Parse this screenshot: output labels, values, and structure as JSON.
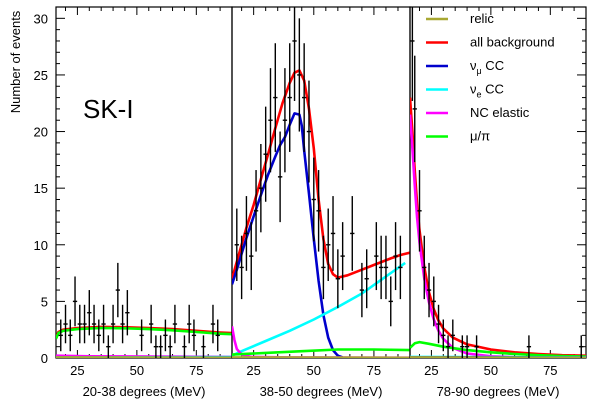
{
  "figure": {
    "ylabel": "Number of events",
    "annotation": "SK-I",
    "ylim": [
      0,
      31
    ],
    "y_ticks": [
      0,
      5,
      10,
      15,
      20,
      25,
      30
    ],
    "x_ticks": [
      25,
      50,
      75
    ],
    "xlim": [
      16,
      90
    ]
  },
  "legend": {
    "placement": "top-right (panel 3)",
    "entries": [
      {
        "label": "relic",
        "color": "#a8a832"
      },
      {
        "label": "all background",
        "color": "#ff0000"
      },
      {
        "label": "νμ CC",
        "base": "ν",
        "sub": "μ",
        "suffix": " CC",
        "color": "#0000cc"
      },
      {
        "label": "νe CC",
        "base": "ν",
        "sub": "e",
        "suffix": " CC",
        "color": "#00ffff"
      },
      {
        "label": "NC elastic",
        "color": "#ff00ff"
      },
      {
        "label": "μ/π",
        "color": "#00ff00"
      }
    ]
  },
  "chart_data": [
    {
      "type": "line",
      "panel": "20-38 degrees",
      "xlabel": "20-38 degrees (MeV)",
      "xlim": [
        16,
        90
      ],
      "ylim": [
        0,
        31
      ],
      "points": [
        {
          "x": 18,
          "y": 2,
          "err": 1.4
        },
        {
          "x": 20,
          "y": 3,
          "err": 1.7
        },
        {
          "x": 22,
          "y": 2,
          "err": 1.4
        },
        {
          "x": 24,
          "y": 5,
          "err": 2.2
        },
        {
          "x": 26,
          "y": 3,
          "err": 1.7
        },
        {
          "x": 28,
          "y": 3,
          "err": 1.7
        },
        {
          "x": 30,
          "y": 4,
          "err": 2.0
        },
        {
          "x": 32,
          "y": 3,
          "err": 1.7
        },
        {
          "x": 34,
          "y": 2,
          "err": 1.4
        },
        {
          "x": 36,
          "y": 3,
          "err": 1.7
        },
        {
          "x": 38,
          "y": 1,
          "err": 1.0
        },
        {
          "x": 40,
          "y": 3,
          "err": 1.7
        },
        {
          "x": 42,
          "y": 6,
          "err": 2.4
        },
        {
          "x": 44,
          "y": 3,
          "err": 1.7
        },
        {
          "x": 46,
          "y": 4,
          "err": 2.0
        },
        {
          "x": 52,
          "y": 2,
          "err": 1.4
        },
        {
          "x": 56,
          "y": 3,
          "err": 1.7
        },
        {
          "x": 58,
          "y": 1,
          "err": 1.0
        },
        {
          "x": 60,
          "y": 1,
          "err": 1.0
        },
        {
          "x": 62,
          "y": 2,
          "err": 1.4
        },
        {
          "x": 64,
          "y": 1,
          "err": 1.0
        },
        {
          "x": 66,
          "y": 3,
          "err": 1.7
        },
        {
          "x": 70,
          "y": 1,
          "err": 1.0
        },
        {
          "x": 72,
          "y": 3,
          "err": 1.7
        },
        {
          "x": 74,
          "y": 2,
          "err": 1.4
        },
        {
          "x": 78,
          "y": 1,
          "err": 1.0
        },
        {
          "x": 82,
          "y": 3,
          "err": 1.7
        },
        {
          "x": 84,
          "y": 2,
          "err": 1.4
        }
      ],
      "series": [
        {
          "name": "all background",
          "color": "#ff0000",
          "points": [
            [
              16,
              1.8
            ],
            [
              17,
              2.3
            ],
            [
              19,
              2.5
            ],
            [
              25,
              2.65
            ],
            [
              35,
              2.75
            ],
            [
              45,
              2.72
            ],
            [
              55,
              2.65
            ],
            [
              65,
              2.55
            ],
            [
              75,
              2.4
            ],
            [
              85,
              2.25
            ],
            [
              90,
              2.2
            ]
          ]
        },
        {
          "name": "μ/π",
          "color": "#00ff00",
          "points": [
            [
              16,
              1.7
            ],
            [
              17,
              2.2
            ],
            [
              19,
              2.4
            ],
            [
              25,
              2.55
            ],
            [
              35,
              2.65
            ],
            [
              45,
              2.62
            ],
            [
              55,
              2.55
            ],
            [
              65,
              2.45
            ],
            [
              75,
              2.3
            ],
            [
              85,
              2.15
            ],
            [
              90,
              2.1
            ]
          ]
        },
        {
          "name": "NC elastic",
          "color": "#ff00ff",
          "points": [
            [
              16,
              0.2
            ],
            [
              30,
              0.15
            ],
            [
              60,
              0.12
            ],
            [
              90,
              0.1
            ]
          ]
        },
        {
          "name": "νe CC",
          "color": "#00ffff",
          "points": [
            [
              16,
              0.05
            ],
            [
              90,
              0.08
            ]
          ]
        },
        {
          "name": "νμ CC",
          "color": "#0000cc",
          "points": [
            [
              16,
              0.03
            ],
            [
              90,
              0.03
            ]
          ]
        },
        {
          "name": "relic",
          "color": "#a8a832",
          "points": [
            [
              16,
              0.05
            ],
            [
              90,
              0.02
            ]
          ]
        }
      ]
    },
    {
      "type": "line",
      "panel": "38-50 degrees",
      "xlabel": "38-50 degrees (MeV)",
      "xlim": [
        16,
        90
      ],
      "ylim": [
        0,
        31
      ],
      "points": [
        {
          "x": 18,
          "y": 10,
          "err": 3.2
        },
        {
          "x": 20,
          "y": 8,
          "err": 2.8
        },
        {
          "x": 22,
          "y": 11,
          "err": 3.3
        },
        {
          "x": 24,
          "y": 9,
          "err": 3.0
        },
        {
          "x": 26,
          "y": 13,
          "err": 3.6
        },
        {
          "x": 28,
          "y": 15,
          "err": 3.9
        },
        {
          "x": 30,
          "y": 18,
          "err": 4.2
        },
        {
          "x": 32,
          "y": 21,
          "err": 4.6
        },
        {
          "x": 34,
          "y": 23,
          "err": 4.8
        },
        {
          "x": 36,
          "y": 16,
          "err": 4.0
        },
        {
          "x": 38,
          "y": 21,
          "err": 4.6
        },
        {
          "x": 40,
          "y": 23,
          "err": 4.8
        },
        {
          "x": 42,
          "y": 28,
          "err": 5.3
        },
        {
          "x": 44,
          "y": 25,
          "err": 5.0
        },
        {
          "x": 46,
          "y": 23,
          "err": 4.8
        },
        {
          "x": 48,
          "y": 20,
          "err": 4.5
        },
        {
          "x": 50,
          "y": 14,
          "err": 3.7
        },
        {
          "x": 52,
          "y": 13,
          "err": 3.6
        },
        {
          "x": 54,
          "y": 8,
          "err": 2.8
        },
        {
          "x": 56,
          "y": 10,
          "err": 3.2
        },
        {
          "x": 58,
          "y": 11,
          "err": 3.3
        },
        {
          "x": 60,
          "y": 7,
          "err": 2.6
        },
        {
          "x": 62,
          "y": 9,
          "err": 3.0
        },
        {
          "x": 66,
          "y": 11,
          "err": 3.3
        },
        {
          "x": 70,
          "y": 6,
          "err": 2.4
        },
        {
          "x": 72,
          "y": 7,
          "err": 2.6
        },
        {
          "x": 76,
          "y": 9,
          "err": 3.0
        },
        {
          "x": 78,
          "y": 8,
          "err": 2.8
        },
        {
          "x": 80,
          "y": 8,
          "err": 2.8
        },
        {
          "x": 82,
          "y": 5,
          "err": 2.2
        },
        {
          "x": 84,
          "y": 9,
          "err": 3.0
        },
        {
          "x": 86,
          "y": 8,
          "err": 2.8
        }
      ],
      "series": [
        {
          "name": "all background",
          "color": "#ff0000",
          "points": [
            [
              16,
              7
            ],
            [
              18,
              8.5
            ],
            [
              20,
              10
            ],
            [
              22,
              11.5
            ],
            [
              25,
              13.5
            ],
            [
              28,
              15.8
            ],
            [
              31,
              18
            ],
            [
              34,
              20.3
            ],
            [
              37,
              22.5
            ],
            [
              40,
              24.3
            ],
            [
              42,
              25.2
            ],
            [
              44,
              25.4
            ],
            [
              46,
              24.5
            ],
            [
              48,
              22
            ],
            [
              50,
              18.5
            ],
            [
              52,
              14
            ],
            [
              54,
              10.5
            ],
            [
              56,
              8.3
            ],
            [
              58,
              7.4
            ],
            [
              60,
              7.1
            ],
            [
              64,
              7.3
            ],
            [
              70,
              7.8
            ],
            [
              76,
              8.3
            ],
            [
              82,
              8.8
            ],
            [
              86,
              9.1
            ],
            [
              90,
              9.3
            ]
          ]
        },
        {
          "name": "νμ CC",
          "color": "#0000cc",
          "points": [
            [
              16,
              6.5
            ],
            [
              18,
              7.8
            ],
            [
              20,
              9.2
            ],
            [
              22,
              10.6
            ],
            [
              25,
              12.5
            ],
            [
              28,
              14.4
            ],
            [
              31,
              16.2
            ],
            [
              34,
              17.8
            ],
            [
              36,
              18.8
            ],
            [
              38,
              19.5
            ],
            [
              40,
              20.6
            ],
            [
              42,
              21.6
            ],
            [
              44,
              21.5
            ],
            [
              45,
              20.5
            ],
            [
              46,
              18.3
            ],
            [
              48,
              14.5
            ],
            [
              50,
              10.5
            ],
            [
              52,
              6.8
            ],
            [
              54,
              3.8
            ],
            [
              56,
              1.8
            ],
            [
              58,
              0.7
            ],
            [
              60,
              0.2
            ],
            [
              62,
              0.05
            ]
          ]
        },
        {
          "name": "νe CC",
          "color": "#00ffff",
          "points": [
            [
              16,
              0.2
            ],
            [
              20,
              0.6
            ],
            [
              30,
              1.5
            ],
            [
              40,
              2.4
            ],
            [
              50,
              3.4
            ],
            [
              60,
              4.5
            ],
            [
              70,
              5.7
            ],
            [
              80,
              7.2
            ],
            [
              88,
              8.4
            ]
          ]
        },
        {
          "name": "NC elastic",
          "color": "#ff00ff",
          "points": [
            [
              16,
              2.8
            ],
            [
              17,
              1.6
            ],
            [
              18,
              0.8
            ],
            [
              20,
              0.3
            ],
            [
              24,
              0.1
            ],
            [
              40,
              0.05
            ],
            [
              90,
              0.03
            ]
          ]
        },
        {
          "name": "μ/π",
          "color": "#00ff00",
          "points": [
            [
              16,
              0.3
            ],
            [
              30,
              0.45
            ],
            [
              45,
              0.6
            ],
            [
              60,
              0.75
            ],
            [
              75,
              0.75
            ],
            [
              90,
              0.7
            ]
          ]
        },
        {
          "name": "relic",
          "color": "#a8a832",
          "points": [
            [
              16,
              0.05
            ],
            [
              90,
              0.02
            ]
          ]
        }
      ]
    },
    {
      "type": "line",
      "panel": "78-90 degrees",
      "xlabel": "78-90 degrees (MeV)",
      "xlim": [
        16,
        90
      ],
      "ylim": [
        0,
        31
      ],
      "points": [
        {
          "x": 17,
          "y": 28,
          "err": 5.3
        },
        {
          "x": 18,
          "y": 22,
          "err": 4.7
        },
        {
          "x": 20,
          "y": 13,
          "err": 3.6
        },
        {
          "x": 22,
          "y": 8,
          "err": 2.8
        },
        {
          "x": 24,
          "y": 6,
          "err": 2.4
        },
        {
          "x": 26,
          "y": 5,
          "err": 2.2
        },
        {
          "x": 28,
          "y": 3,
          "err": 1.7
        },
        {
          "x": 30,
          "y": 2,
          "err": 1.4
        },
        {
          "x": 32,
          "y": 1,
          "err": 1.0
        },
        {
          "x": 34,
          "y": 2,
          "err": 1.4
        },
        {
          "x": 38,
          "y": 1,
          "err": 1.0
        },
        {
          "x": 40,
          "y": 1,
          "err": 1.0
        },
        {
          "x": 44,
          "y": 1,
          "err": 1.0
        },
        {
          "x": 66,
          "y": 1,
          "err": 1.0
        },
        {
          "x": 88,
          "y": 1,
          "err": 1.0
        }
      ],
      "series": [
        {
          "name": "all background",
          "color": "#ff0000",
          "points": [
            [
              16,
              23
            ],
            [
              17,
              20
            ],
            [
              18,
              16.5
            ],
            [
              19,
              13.6
            ],
            [
              20,
              11.3
            ],
            [
              22,
              8
            ],
            [
              24,
              5.8
            ],
            [
              26,
              4.3
            ],
            [
              28,
              3.3
            ],
            [
              30,
              2.6
            ],
            [
              34,
              1.8
            ],
            [
              40,
              1.2
            ],
            [
              50,
              0.75
            ],
            [
              60,
              0.5
            ],
            [
              70,
              0.35
            ],
            [
              80,
              0.25
            ],
            [
              90,
              0.2
            ]
          ]
        },
        {
          "name": "NC elastic",
          "color": "#ff00ff",
          "points": [
            [
              16,
              21.5
            ],
            [
              17,
              18.5
            ],
            [
              18,
              15.2
            ],
            [
              19,
              12.4
            ],
            [
              20,
              10.2
            ],
            [
              22,
              7
            ],
            [
              24,
              4.9
            ],
            [
              26,
              3.4
            ],
            [
              28,
              2.4
            ],
            [
              30,
              1.7
            ],
            [
              34,
              0.9
            ],
            [
              40,
              0.4
            ],
            [
              50,
              0.15
            ],
            [
              60,
              0.07
            ],
            [
              90,
              0.03
            ]
          ]
        },
        {
          "name": "μ/π",
          "color": "#00ff00",
          "points": [
            [
              16,
              0.9
            ],
            [
              18,
              1.3
            ],
            [
              20,
              1.4
            ],
            [
              24,
              1.25
            ],
            [
              30,
              1.0
            ],
            [
              40,
              0.7
            ],
            [
              50,
              0.5
            ],
            [
              60,
              0.35
            ],
            [
              70,
              0.25
            ],
            [
              80,
              0.18
            ],
            [
              90,
              0.12
            ]
          ]
        },
        {
          "name": "νe CC",
          "color": "#00ffff",
          "points": [
            [
              16,
              0.1
            ],
            [
              40,
              0.08
            ],
            [
              90,
              0.05
            ]
          ]
        },
        {
          "name": "νμ CC",
          "color": "#0000cc",
          "points": [
            [
              16,
              0.05
            ],
            [
              90,
              0.03
            ]
          ]
        },
        {
          "name": "relic",
          "color": "#a8a832",
          "points": [
            [
              16,
              0.05
            ],
            [
              90,
              0.02
            ]
          ]
        }
      ]
    }
  ]
}
